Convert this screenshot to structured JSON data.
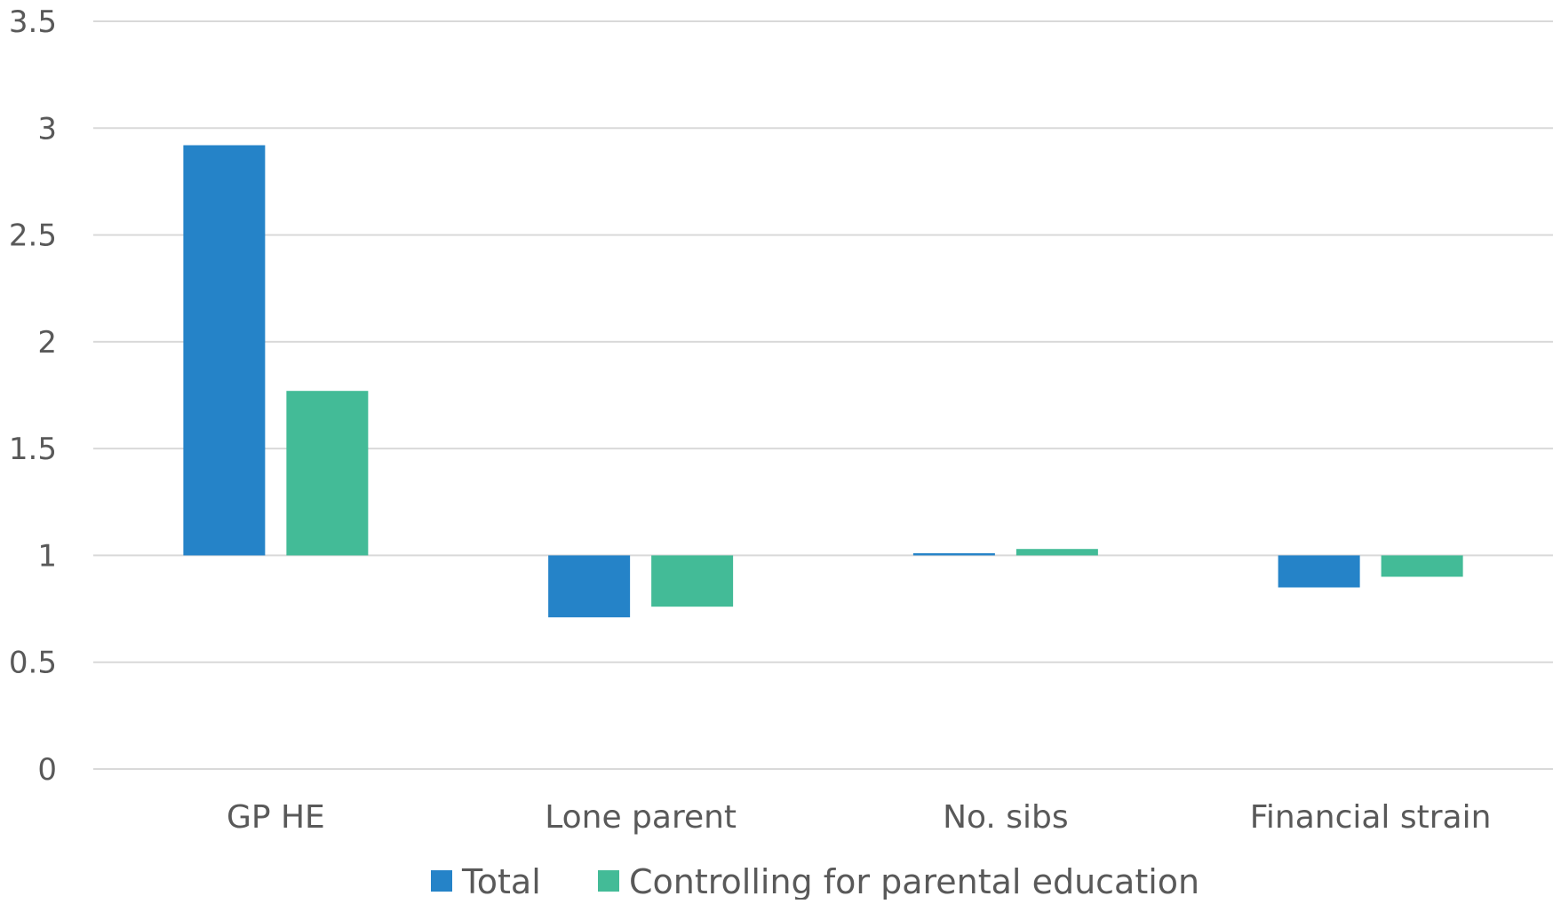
{
  "chart_data": {
    "type": "bar",
    "title": "",
    "xlabel": "",
    "ylabel": "",
    "categories": [
      "GP HE",
      "Lone parent",
      "No. sibs",
      "Financial strain"
    ],
    "series": [
      {
        "name": "Total",
        "values": [
          2.92,
          0.71,
          1.01,
          0.85
        ],
        "color": "#2583C8"
      },
      {
        "name": "Controlling for parental education",
        "values": [
          1.77,
          0.76,
          1.03,
          0.9
        ],
        "color": "#43BB97"
      }
    ],
    "baseline": 1,
    "ylim": [
      0,
      3.5
    ],
    "yticks": [
      "0",
      "0.5",
      "1",
      "1.5",
      "2",
      "2.5",
      "3",
      "3.5"
    ],
    "grid": true,
    "legend_position": "bottom"
  }
}
